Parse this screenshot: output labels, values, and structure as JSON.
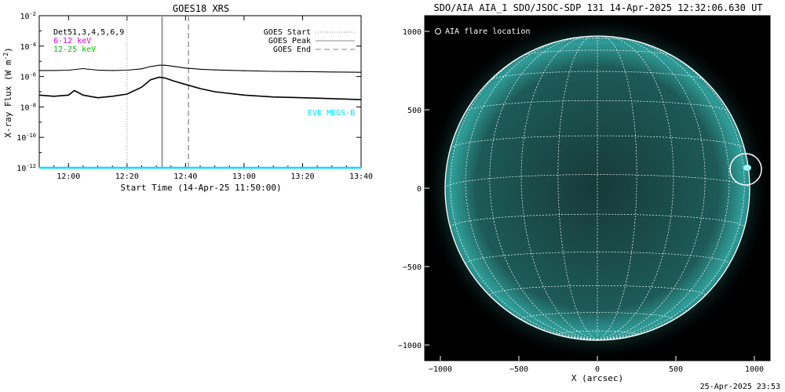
{
  "left_panel": {
    "title": "GOES18 XRS",
    "ylabel": "X-ray Flux (W m",
    "ylabel_sup": "-2",
    "ylabel_tail": ")",
    "xlabel": "Start Time (14-Apr-25 11:50:00)",
    "legend_left": [
      {
        "text": "Det51,3,4,5,6,9",
        "color": "#000000"
      },
      {
        "text": "6-12 keV",
        "color": "#e000e0"
      },
      {
        "text": "12-25 keV",
        "color": "#00c000"
      }
    ],
    "legend_right": [
      {
        "text": "GOES Start",
        "style": "dotted"
      },
      {
        "text": "GOES Peak",
        "style": "solid"
      },
      {
        "text": "GOES End",
        "style": "dashed"
      }
    ],
    "eve_label": "EVE MEGS-B",
    "eve_color": "#00e0ff"
  },
  "right_panel": {
    "title": "SDO/AIA AIA_1 SDO/JSOC-SDP 131 14-Apr-2025 12:32:06.630 UT",
    "legend_text": "AIA flare location",
    "xlabel": "X (arcsec)",
    "x_ticks": [
      "−1000",
      "−500",
      "0",
      "500",
      "1000"
    ],
    "y_ticks": [
      "1000",
      "500",
      "0",
      "−500",
      "−1000"
    ],
    "disk_color": "#1a4a48",
    "limb_color": "#2a8a88"
  },
  "footer": {
    "timestamp": "25-Apr-2025 23:53"
  },
  "chart_data": {
    "type": "line",
    "title": "GOES18 XRS",
    "xlabel": "Start Time (14-Apr-25 11:50:00)",
    "ylabel": "X-ray Flux (W m^-2)",
    "y_scale": "log",
    "ylim": [
      1e-12,
      0.01
    ],
    "xlim": [
      "11:50",
      "13:40"
    ],
    "x_tick_labels": [
      "12:00",
      "12:20",
      "12:40",
      "13:00",
      "13:20",
      "13:40"
    ],
    "y_tick_labels": [
      "10^-12",
      "10^-10",
      "10^-8",
      "10^-6",
      "10^-4",
      "10^-2"
    ],
    "goes_start": "12:20",
    "goes_peak": "12:32",
    "goes_end": "12:41",
    "series": [
      {
        "color": "#000000",
        "x": [
          "11:50",
          "11:55",
          "12:00",
          "12:05",
          "12:10",
          "12:15",
          "12:20",
          "12:25",
          "12:28",
          "12:31",
          "12:33",
          "12:36",
          "12:40",
          "12:45",
          "12:50",
          "13:00",
          "13:10",
          "13:20",
          "13:30",
          "13:40"
        ],
        "y": [
          2.5e-06,
          2.5e-06,
          2.6e-06,
          3.3e-06,
          2.6e-06,
          2.5e-06,
          2.6e-06,
          3.2e-06,
          4.5e-06,
          5.5e-06,
          5.5e-06,
          4.6e-06,
          3.6e-06,
          3e-06,
          2.7e-06,
          2.4e-06,
          2.2e-06,
          2.1e-06,
          2e-06,
          1.9e-06
        ]
      },
      {
        "color": "#000000",
        "x": [
          "11:50",
          "11:55",
          "12:00",
          "12:02",
          "12:05",
          "12:10",
          "12:15",
          "12:20",
          "12:25",
          "12:28",
          "12:31",
          "12:33",
          "12:36",
          "12:40",
          "12:45",
          "12:50",
          "13:00",
          "13:10",
          "13:20",
          "13:30",
          "13:40"
        ],
        "y": [
          6e-08,
          5e-08,
          6e-08,
          1.2e-07,
          6e-08,
          4e-08,
          5e-08,
          7e-08,
          2e-07,
          6e-07,
          9e-07,
          8e-07,
          5e-07,
          3e-07,
          1.6e-07,
          1e-07,
          6e-08,
          4.5e-08,
          4e-08,
          3.5e-08,
          3e-08
        ]
      },
      {
        "color": "#00e0ff",
        "x": [
          "11:50",
          "13:40"
        ],
        "y": [
          1e-12,
          1e-12
        ]
      }
    ],
    "image_axis": {
      "xlabel": "X (arcsec)",
      "x_ticks": [
        -1000,
        -500,
        0,
        500,
        1000
      ],
      "y_ticks": [
        1000,
        500,
        0,
        -500,
        -1000
      ],
      "xlim": [
        -1100,
        1100
      ],
      "ylim": [
        -1100,
        1100
      ],
      "flare_location": {
        "x": 930,
        "y": 120
      }
    }
  }
}
